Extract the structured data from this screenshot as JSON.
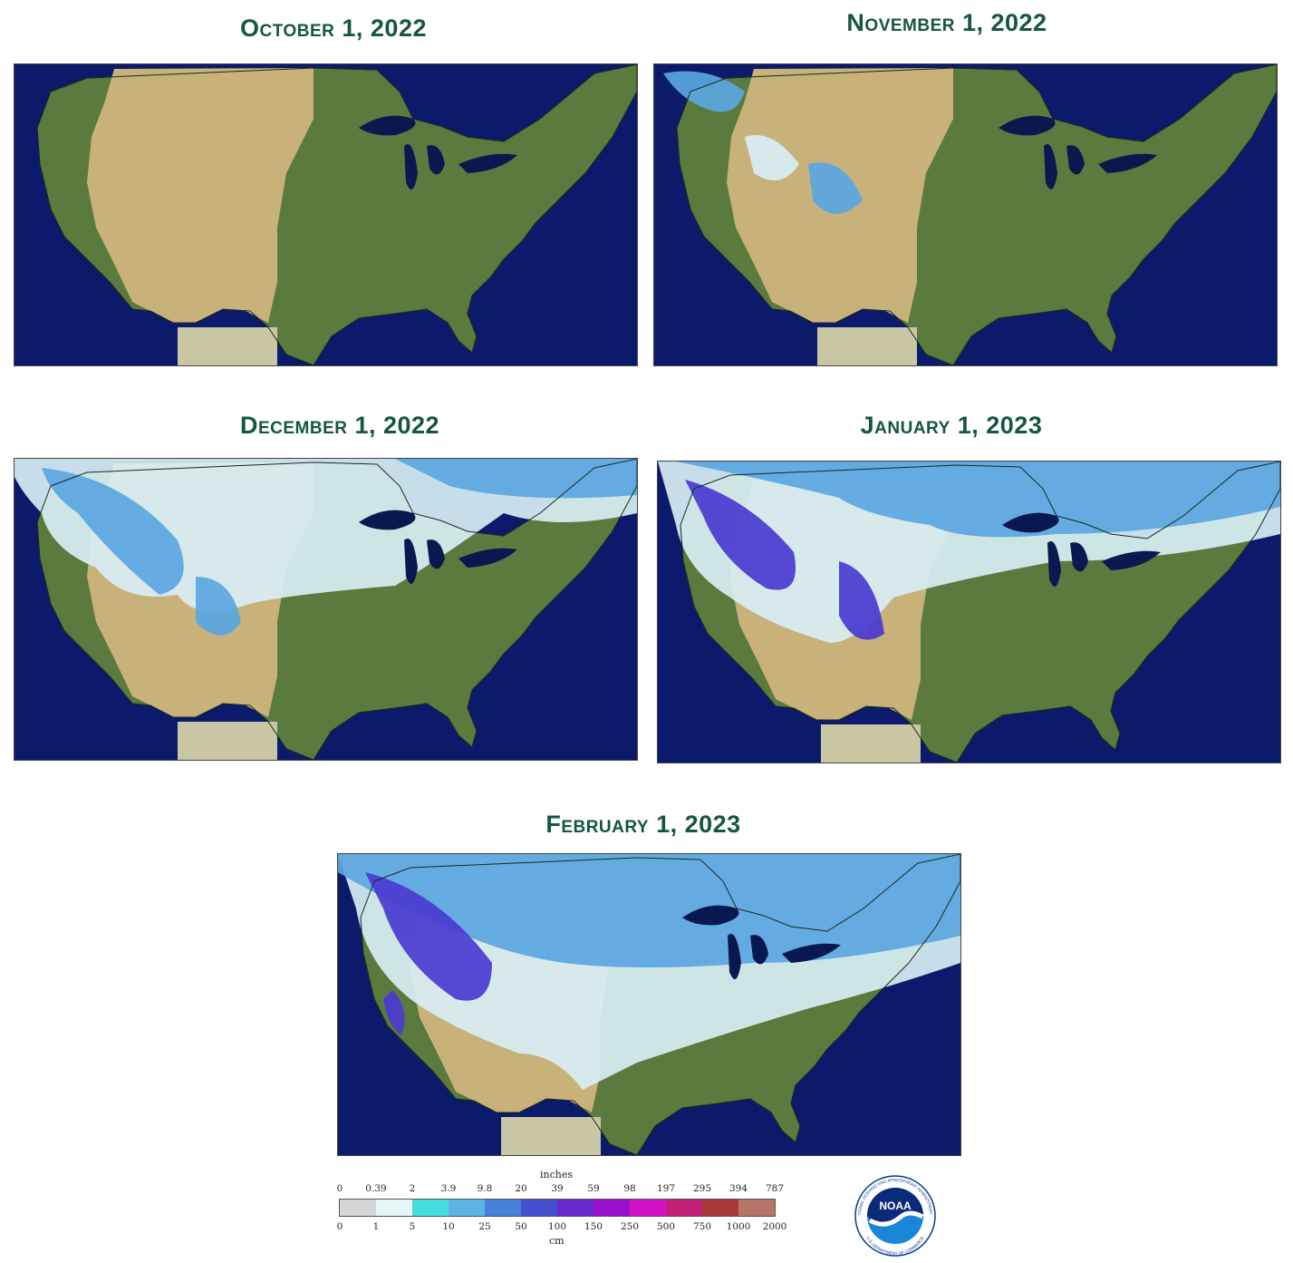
{
  "panels": [
    {
      "title": "October 1, 2022",
      "snow_level": 0
    },
    {
      "title": "November 1, 2022",
      "snow_level": 1
    },
    {
      "title": "December 1, 2022",
      "snow_level": 2
    },
    {
      "title": "January 1, 2023",
      "snow_level": 3
    },
    {
      "title": "February 1, 2023",
      "snow_level": 4
    }
  ],
  "legend": {
    "unit_top": "inches",
    "unit_bottom": "cm",
    "inches_ticks": [
      "0",
      "0.39",
      "2",
      "3.9",
      "9.8",
      "20",
      "39",
      "59",
      "98",
      "197",
      "295",
      "394",
      "787"
    ],
    "cm_ticks": [
      "0",
      "1",
      "5",
      "10",
      "25",
      "50",
      "100",
      "150",
      "250",
      "500",
      "750",
      "1000",
      "2000"
    ],
    "colors": [
      "#d6d6d6",
      "#e6f6f6",
      "#44dcdc",
      "#5cb4e6",
      "#4680d8",
      "#4250d0",
      "#6a28d0",
      "#9a10cc",
      "#d212c8",
      "#c4207a",
      "#a83838",
      "#b87468"
    ]
  },
  "logo": {
    "text": "NOAA",
    "ring_top": "NATIONAL OCEANIC AND ATMOSPHERIC ADMINISTRATION",
    "ring_bottom": "U.S. DEPARTMENT OF COMMERCE"
  },
  "colors": {
    "title": "#14563f",
    "ocean": "#0b1a6b",
    "land_green": "#5a7a3e",
    "land_tan": "#c8b27a",
    "snow_light": "#d8eef4",
    "snow_blue": "#5aa6e0",
    "snow_deep": "#4a3ad0"
  }
}
